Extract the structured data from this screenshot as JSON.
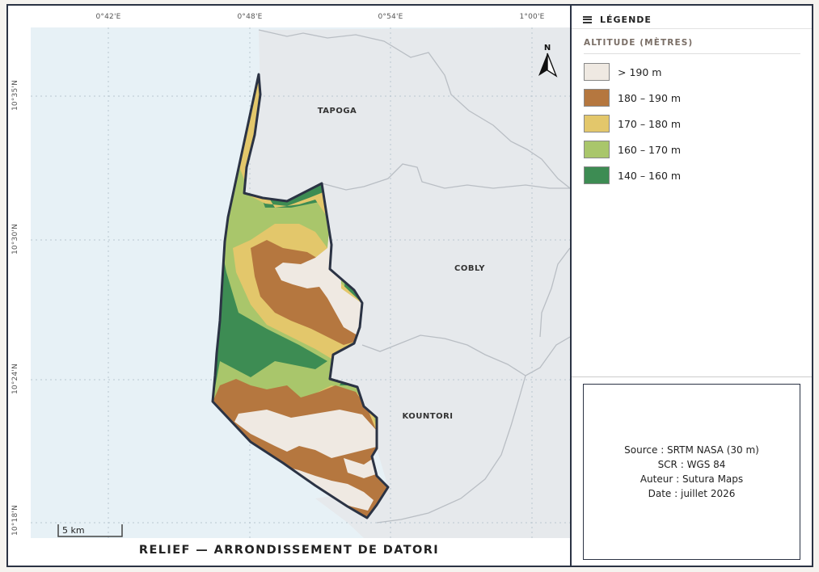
{
  "map": {
    "title": "RELIEF — ARRONDISSEMENT DE DATORI",
    "north_label": "N",
    "scale_label": "5 km",
    "longitude_ticks": [
      "0°42'E",
      "0°48'E",
      "0°54'E",
      "1°00'E"
    ],
    "latitude_ticks": [
      "10°35'N",
      "10°30'N",
      "10°24'N",
      "10°18'N"
    ],
    "regions": [
      {
        "name": "TAPOGA"
      },
      {
        "name": "COBLY"
      },
      {
        "name": "KOUNTORI"
      }
    ]
  },
  "legend": {
    "header": "LÉGENDE",
    "subtitle": "ALTITUDE (MÈTRES)",
    "items": [
      {
        "label": "> 190 m",
        "color": "#efe9e2"
      },
      {
        "label": "180 – 190 m",
        "color": "#b5773f"
      },
      {
        "label": "170 – 180 m",
        "color": "#e3c76b"
      },
      {
        "label": "160 – 170 m",
        "color": "#a9c66b"
      },
      {
        "label": "140 – 160 m",
        "color": "#3d8c53"
      }
    ]
  },
  "credits": {
    "source": "Source : SRTM NASA (30 m)",
    "scr": "SCR : WGS 84",
    "author": "Auteur : Sutura Maps",
    "date": "Date : juillet 2026"
  },
  "colors": {
    "water": "#e7f1f6",
    "neighbor": "#e6e9ec",
    "neighbor_border": "#b9bec4",
    "outline": "#2b3344"
  }
}
